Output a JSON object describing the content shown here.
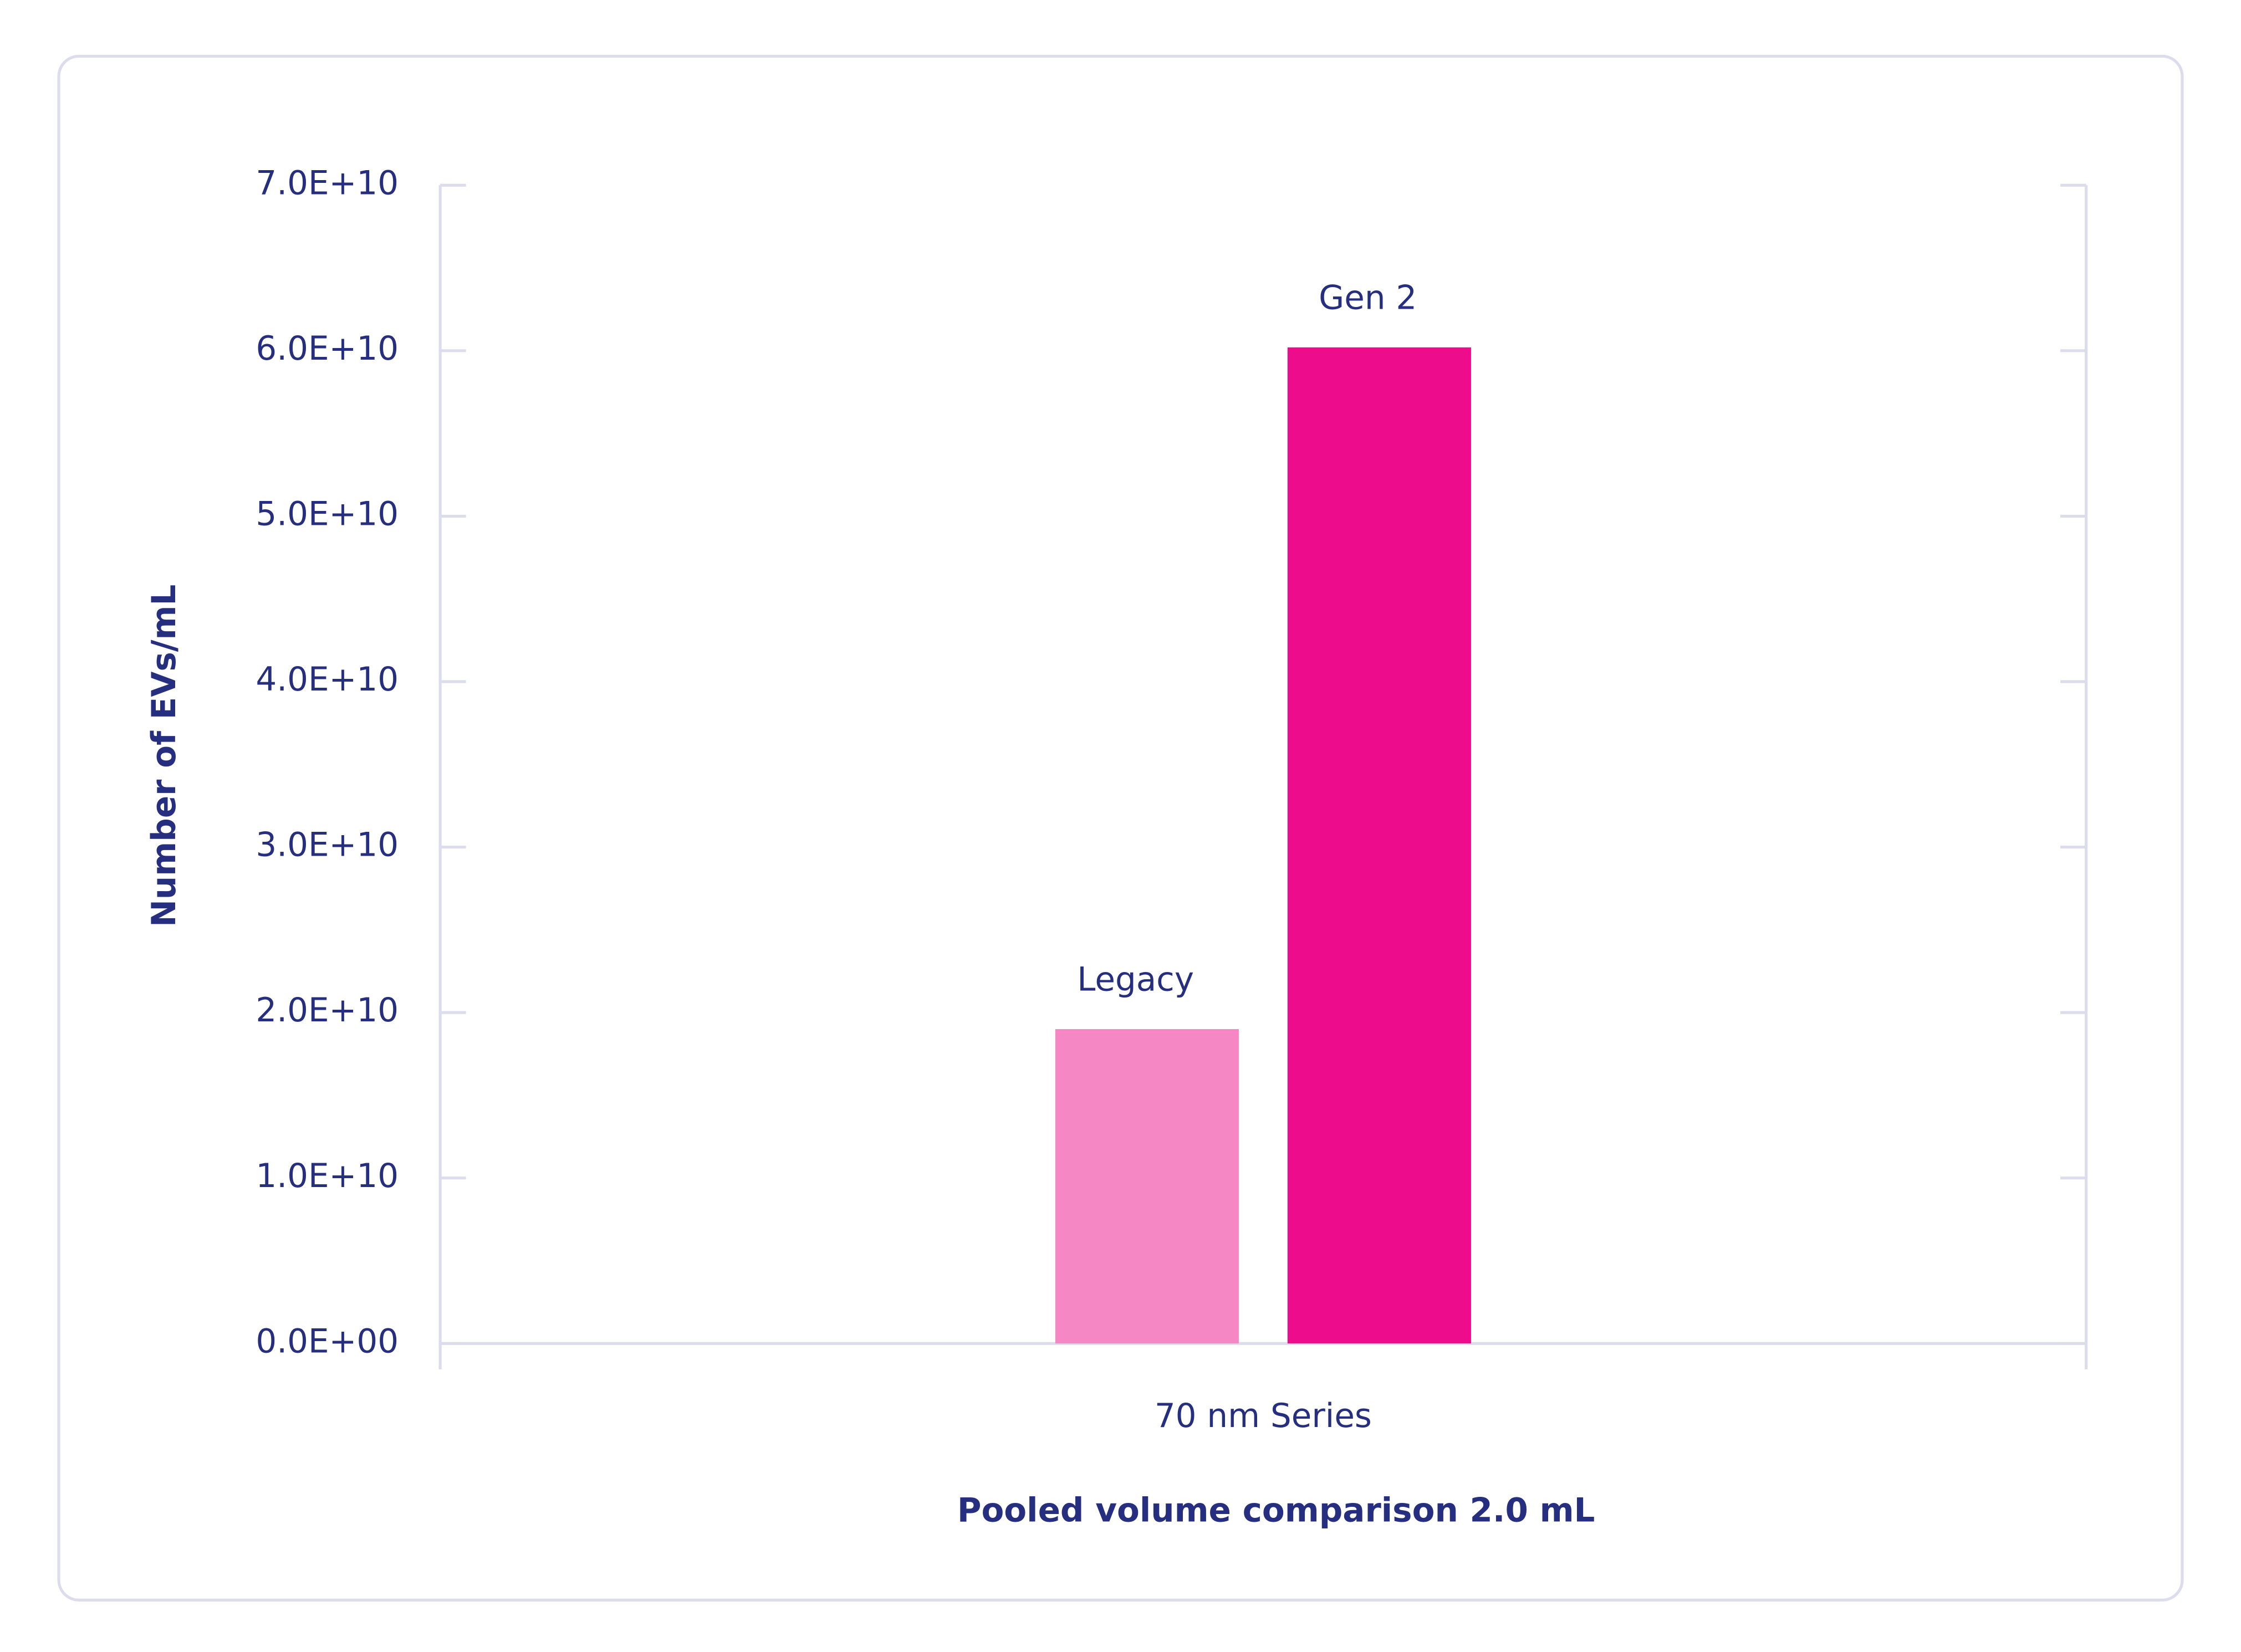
{
  "chart_data": {
    "type": "bar",
    "x_label": "Pooled volume comparison 2.0 mL",
    "y_label": "Number of EVs/mL",
    "categories": [
      "70 nm Series"
    ],
    "series": [
      {
        "name": "Legacy",
        "color": "#f487c4",
        "values": [
          19000000000
        ]
      },
      {
        "name": "Gen 2",
        "color": "#ec0c8c",
        "values": [
          60200000000
        ]
      }
    ],
    "ylim": [
      0,
      70000000000
    ],
    "yticks": [
      {
        "value": 0,
        "label": "0.0E+00"
      },
      {
        "value": 10000000000,
        "label": "1.0E+10"
      },
      {
        "value": 20000000000,
        "label": "2.0E+10"
      },
      {
        "value": 30000000000,
        "label": "3.0E+10"
      },
      {
        "value": 40000000000,
        "label": "4.0E+10"
      },
      {
        "value": 50000000000,
        "label": "5.0E+10"
      },
      {
        "value": 60000000000,
        "label": "6.0E+10"
      },
      {
        "value": 70000000000,
        "label": "7.0E+10"
      }
    ],
    "grid": false
  }
}
